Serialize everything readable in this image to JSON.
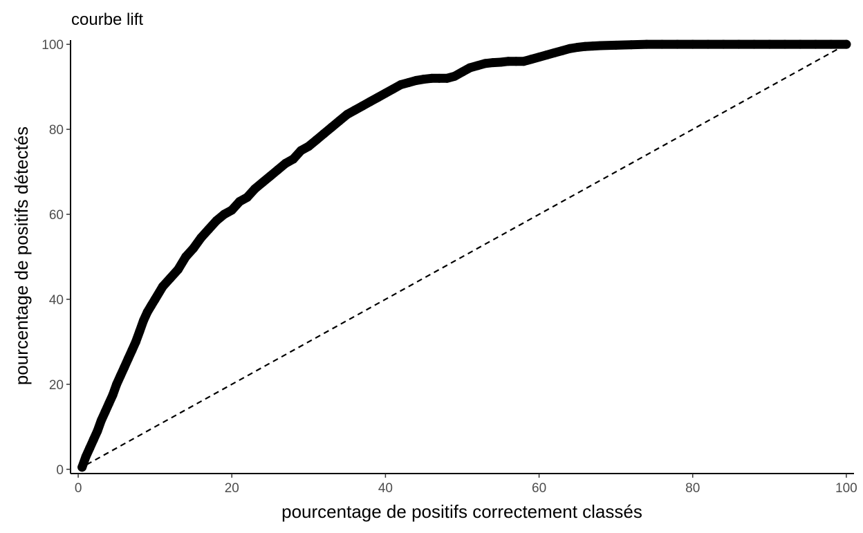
{
  "chart_data": {
    "type": "scatter",
    "title": "courbe lift",
    "xlabel": "pourcentage de positifs correctement classés",
    "ylabel": "pourcentage de positifs détectés",
    "xlim": [
      -1,
      101
    ],
    "ylim": [
      -1,
      101
    ],
    "x_ticks": [
      0,
      20,
      40,
      60,
      80,
      100
    ],
    "y_ticks": [
      0,
      20,
      40,
      60,
      80,
      100
    ],
    "grid": false,
    "series": [
      {
        "style": "points",
        "color": "#000000",
        "x": [
          0.5,
          1,
          1.5,
          2,
          2.5,
          3,
          3.5,
          4,
          4.5,
          5,
          5.5,
          6,
          6.5,
          7,
          7.5,
          8,
          8.5,
          9,
          9.5,
          10,
          11,
          12,
          13,
          14,
          15,
          16,
          17,
          18,
          19,
          20,
          21,
          22,
          23,
          24,
          25,
          26,
          27,
          28,
          29,
          30,
          31,
          32,
          33,
          34,
          35,
          36,
          37,
          38,
          39,
          40,
          41,
          42,
          43,
          44,
          45,
          46,
          47,
          48,
          49,
          50,
          51,
          52,
          53,
          54,
          55,
          56,
          57,
          58,
          59,
          60,
          61,
          62,
          63,
          64,
          65,
          66,
          67,
          68,
          70,
          72,
          74,
          76,
          78,
          80,
          82,
          84,
          86,
          88,
          90,
          92,
          94,
          96,
          98,
          100
        ],
        "y": [
          0.5,
          3,
          5,
          7,
          9,
          11.5,
          13.5,
          15.5,
          17.5,
          20,
          22,
          24,
          26,
          28,
          30,
          32.5,
          35,
          37,
          38.5,
          40,
          43,
          45,
          47,
          50,
          52,
          54.5,
          56.5,
          58.5,
          60,
          61,
          63,
          64,
          66,
          67.5,
          69,
          70.5,
          72,
          73,
          75,
          76,
          77.5,
          79,
          80.5,
          82,
          83.5,
          84.5,
          85.5,
          86.5,
          87.5,
          88.5,
          89.5,
          90.5,
          91,
          91.5,
          91.8,
          92,
          92,
          92,
          92.5,
          93.5,
          94.5,
          95,
          95.5,
          95.7,
          95.8,
          96,
          96,
          96,
          96.5,
          97,
          97.5,
          98,
          98.5,
          99,
          99.3,
          99.5,
          99.6,
          99.7,
          99.8,
          99.9,
          100,
          100,
          100,
          100,
          100,
          100,
          100,
          100,
          100,
          100,
          100,
          100,
          100,
          100
        ]
      },
      {
        "style": "dashed-line",
        "color": "#000000",
        "x": [
          0,
          100
        ],
        "y": [
          0,
          100
        ]
      }
    ]
  }
}
